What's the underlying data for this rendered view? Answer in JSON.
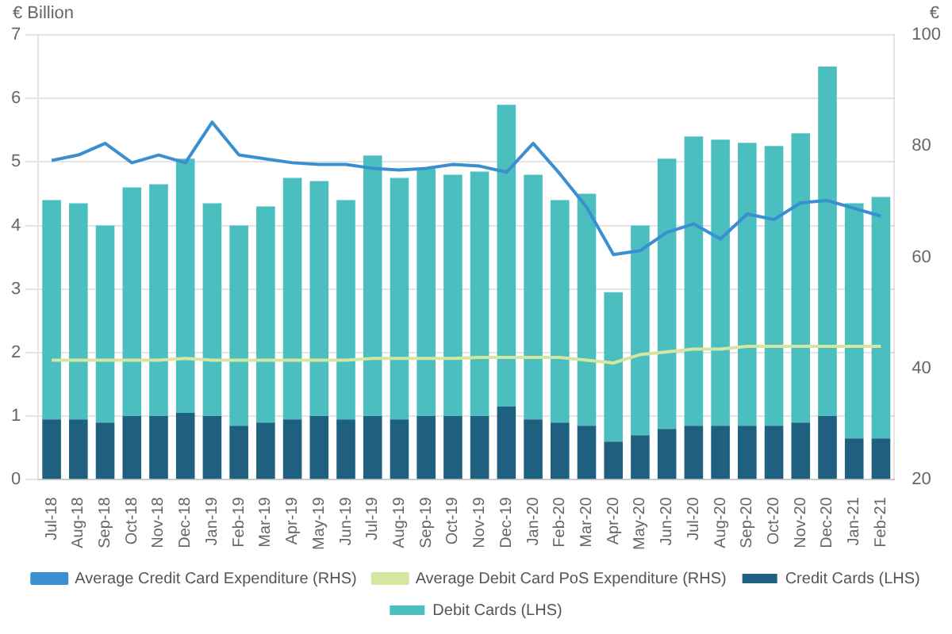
{
  "chart_data": {
    "type": "bar",
    "stacked": true,
    "ylabel": "€ Billion",
    "y2label": "€",
    "categories": [
      "Jul-18",
      "Aug-18",
      "Sep-18",
      "Oct-18",
      "Nov-18",
      "Dec-18",
      "Jan-19",
      "Feb-19",
      "Mar-19",
      "Apr-19",
      "May-19",
      "Jun-19",
      "Jul-19",
      "Aug-19",
      "Sep-19",
      "Oct-19",
      "Nov-19",
      "Dec-19",
      "Jan-20",
      "Feb-20",
      "Mar-20",
      "Apr-20",
      "May-20",
      "Jun-20",
      "Jul-20",
      "Aug-20",
      "Sep-20",
      "Oct-20",
      "Nov-20",
      "Dec-20",
      "Jan-21",
      "Feb-21"
    ],
    "series": [
      {
        "name": "Credit Cards (LHS)",
        "color": "#1f5f80",
        "values": [
          0.95,
          0.95,
          0.9,
          1.0,
          1.0,
          1.05,
          1.0,
          0.85,
          0.9,
          0.95,
          1.0,
          0.95,
          1.0,
          0.95,
          1.0,
          1.0,
          1.0,
          1.15,
          0.95,
          0.9,
          0.85,
          0.6,
          0.7,
          0.8,
          0.85,
          0.85,
          0.85,
          0.85,
          0.9,
          1.0,
          0.65,
          0.65
        ]
      },
      {
        "name": "Debit Cards (LHS)",
        "color": "#4bbfbf",
        "values": [
          3.45,
          3.4,
          3.1,
          3.6,
          3.65,
          4.0,
          3.35,
          3.15,
          3.4,
          3.8,
          3.7,
          3.45,
          4.1,
          3.8,
          3.9,
          3.8,
          3.85,
          4.75,
          3.85,
          3.5,
          3.65,
          2.35,
          3.3,
          4.25,
          4.55,
          4.5,
          4.45,
          4.4,
          4.55,
          5.5,
          3.7,
          3.8
        ]
      },
      {
        "name": "Average Credit Card Expenditure (RHS)",
        "type": "line",
        "axis": "y2",
        "color": "#3a8fd0",
        "values": [
          77.4,
          78.4,
          80.5,
          77,
          78.4,
          77,
          84.3,
          78.4,
          77.7,
          77,
          76.7,
          76.7,
          76,
          75.7,
          76,
          76.7,
          76.4,
          75.3,
          80.5,
          75,
          69,
          60.5,
          61.2,
          64.5,
          66,
          63.3,
          67.8,
          66.8,
          69.8,
          70.2,
          68.8,
          67.4
        ]
      },
      {
        "name": "Average Debit Card PoS Expenditure (RHS)",
        "type": "line",
        "axis": "y2",
        "color": "#d4e6a0",
        "values": [
          41.5,
          41.5,
          41.5,
          41.5,
          41.5,
          41.8,
          41.5,
          41.5,
          41.5,
          41.5,
          41.5,
          41.5,
          41.8,
          41.8,
          41.8,
          41.8,
          42,
          42,
          42,
          42,
          41.5,
          41,
          42.5,
          43,
          43.5,
          43.5,
          44,
          44,
          44,
          44,
          44,
          44
        ]
      }
    ],
    "ylim": [
      0,
      7
    ],
    "yticks": [
      0,
      1,
      2,
      3,
      4,
      5,
      6,
      7
    ],
    "y2lim": [
      20,
      100
    ],
    "y2ticks": [
      20,
      40,
      60,
      80,
      100
    ],
    "grid": "y",
    "legend": "bottom",
    "marker": "none",
    "line_style": "solid"
  }
}
